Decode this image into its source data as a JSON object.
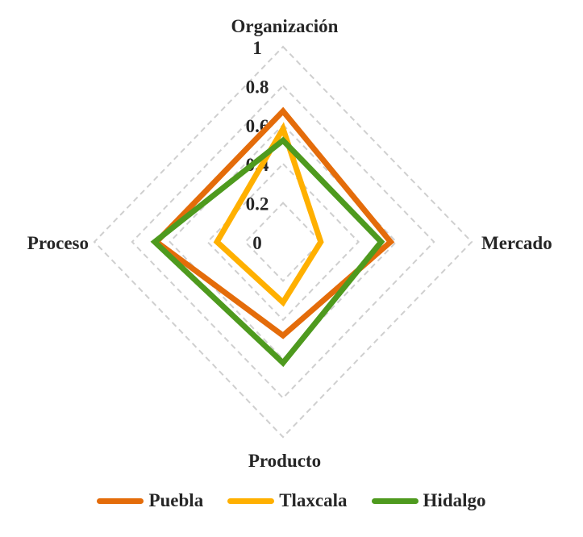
{
  "chart_data": {
    "type": "radar",
    "title": "",
    "axes": [
      "Organización",
      "Mercado",
      "Producto",
      "Proceso"
    ],
    "tick_labels": [
      "0",
      "0.2",
      "0.4",
      "0.6",
      "0.8",
      "1"
    ],
    "range": [
      0,
      1
    ],
    "grid": "dashed",
    "legend_position": "bottom",
    "series": [
      {
        "name": "Puebla",
        "color": "#E46C0A",
        "values": [
          0.67,
          0.57,
          0.48,
          0.67
        ]
      },
      {
        "name": "Tlaxcala",
        "color": "#FFB000",
        "values": [
          0.58,
          0.2,
          0.31,
          0.35
        ]
      },
      {
        "name": "Hidalgo",
        "color": "#4E9A1E",
        "values": [
          0.52,
          0.52,
          0.62,
          0.68
        ]
      }
    ]
  },
  "legend": {
    "items": [
      {
        "label": "Puebla",
        "color": "#E46C0A"
      },
      {
        "label": "Tlaxcala",
        "color": "#FFB000"
      },
      {
        "label": "Hidalgo",
        "color": "#4E9A1E"
      }
    ]
  }
}
